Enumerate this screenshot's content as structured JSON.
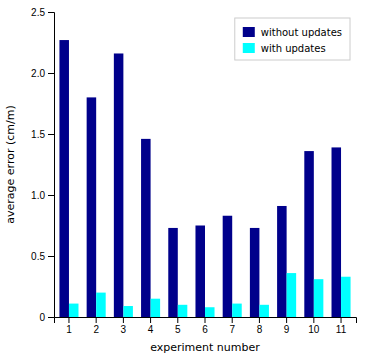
{
  "chart_data": {
    "type": "bar",
    "xlabel": "experiment number",
    "ylabel": "average error (cm/m)",
    "categories": [
      "1",
      "2",
      "3",
      "4",
      "5",
      "6",
      "7",
      "8",
      "9",
      "10",
      "11"
    ],
    "series": [
      {
        "name": "without updates",
        "color": "#00008B",
        "values": [
          2.27,
          1.8,
          2.16,
          1.46,
          0.73,
          0.75,
          0.83,
          0.73,
          0.91,
          1.36,
          1.39
        ]
      },
      {
        "name": "with updates",
        "color": "#00FFFF",
        "values": [
          0.11,
          0.2,
          0.09,
          0.15,
          0.1,
          0.08,
          0.11,
          0.1,
          0.36,
          0.31,
          0.33
        ]
      }
    ],
    "ylim": [
      0,
      2.5
    ],
    "yticks": [
      0,
      0.5,
      {
        "value": 1.0,
        "label": "1.0"
      },
      1.5,
      {
        "value": 2.0,
        "label": "2.0"
      },
      2.5
    ],
    "legend": "top-right",
    "grid": false
  }
}
